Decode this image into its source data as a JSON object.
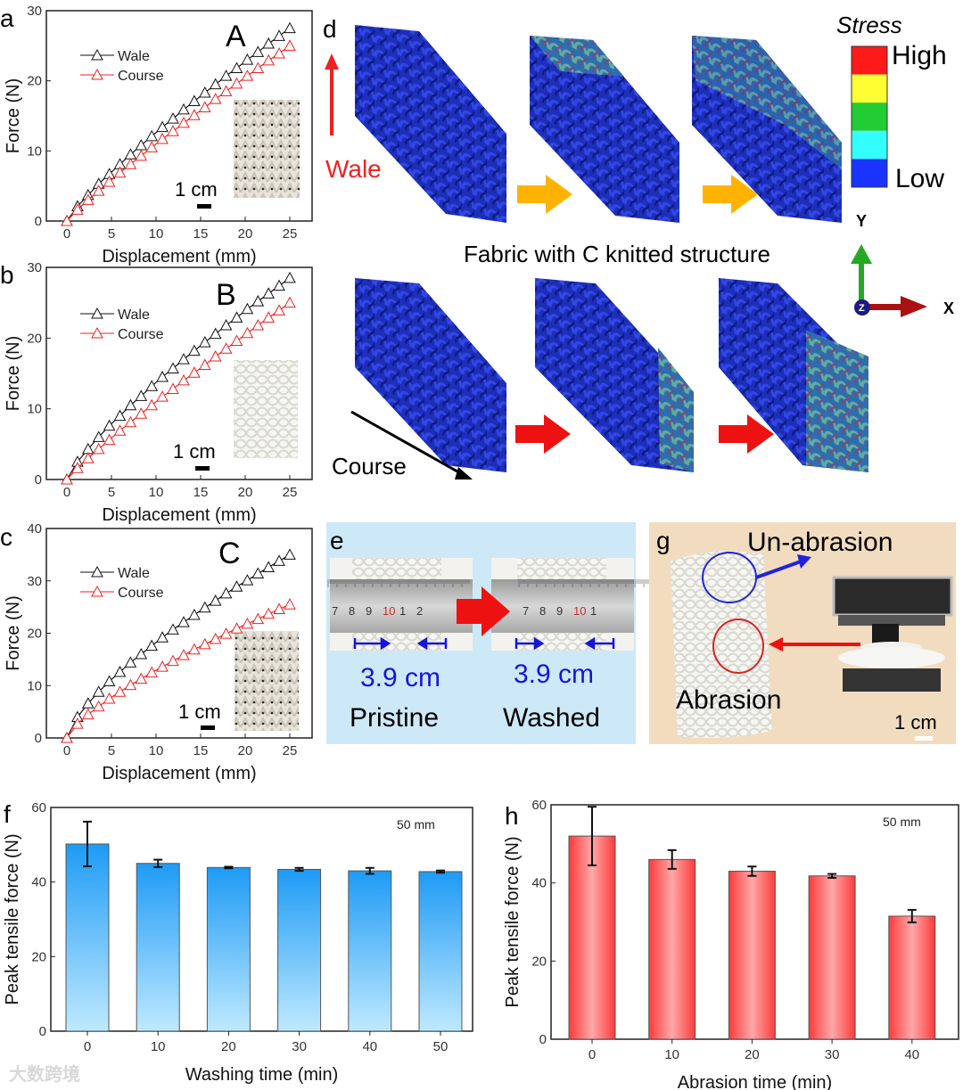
{
  "panels": {
    "a": {
      "letter": "a",
      "tag": "A",
      "scale": "1 cm"
    },
    "b": {
      "letter": "b",
      "tag": "B",
      "scale": "1 cm"
    },
    "c": {
      "letter": "c",
      "tag": "C",
      "scale": "1 cm"
    },
    "d": {
      "letter": "d",
      "wale": "Wale",
      "course": "Course",
      "title": "Fabric with C knitted structure",
      "stress": {
        "title": "Stress",
        "high": "High",
        "low": "Low",
        "colors": [
          "#ff1a1a",
          "#ffff33",
          "#22cc33",
          "#33ffff",
          "#1a33ff"
        ]
      },
      "axes": {
        "y": "Y",
        "x": "X",
        "z": "Z"
      }
    },
    "e": {
      "letter": "e",
      "value_left": "3.9 cm",
      "value_right": "3.9 cm",
      "left_label": "Pristine",
      "right_label": "Washed",
      "ruler_left": [
        "7",
        "8",
        "9",
        "10",
        "1",
        "2"
      ],
      "ruler_right": [
        "7",
        "8",
        "9",
        "10",
        "1"
      ]
    },
    "g": {
      "letter": "g",
      "top_label": "Un-abrasion",
      "bottom_label": "Abrasion",
      "scale": "1 cm"
    },
    "f": {
      "letter": "f"
    },
    "h": {
      "letter": "h"
    }
  },
  "watermark": "大数跨境",
  "chart_data": [
    {
      "id": "a",
      "type": "line",
      "xlabel": "Displacement (mm)",
      "ylabel": "Force (N)",
      "xlim": [
        -2.3,
        27.5
      ],
      "ylim": [
        0,
        30
      ],
      "xticks": [
        0,
        5,
        10,
        15,
        20,
        25
      ],
      "yticks": [
        0,
        10,
        20,
        30
      ],
      "legend": "top-left",
      "x": [
        0,
        1.19,
        2.38,
        3.57,
        4.76,
        5.95,
        7.14,
        8.33,
        9.52,
        10.71,
        11.9,
        13.1,
        14.29,
        15.48,
        16.67,
        17.86,
        19.05,
        20.24,
        21.43,
        22.62,
        23.81,
        25
      ],
      "series": [
        {
          "name": "Wale",
          "color": "#111111",
          "values": [
            0,
            2.1,
            3.7,
            5.3,
            6.7,
            8.1,
            9.5,
            10.8,
            12.1,
            13.4,
            14.6,
            15.9,
            17.1,
            18.3,
            19.5,
            20.7,
            21.8,
            23.0,
            24.1,
            25.3,
            26.4,
            27.5
          ]
        },
        {
          "name": "Course",
          "color": "#ee2222",
          "values": [
            0,
            1.6,
            3.0,
            4.3,
            5.6,
            6.9,
            8.1,
            9.3,
            10.5,
            11.7,
            12.8,
            14.0,
            15.1,
            16.2,
            17.4,
            18.5,
            19.6,
            20.7,
            21.8,
            22.9,
            23.9,
            25.0
          ]
        }
      ]
    },
    {
      "id": "b",
      "type": "line",
      "xlabel": "Displacement (mm)",
      "ylabel": "Force (N)",
      "xlim": [
        -2.3,
        27.5
      ],
      "ylim": [
        0,
        30
      ],
      "xticks": [
        0,
        5,
        10,
        15,
        20,
        25
      ],
      "yticks": [
        0,
        10,
        20,
        30
      ],
      "legend": "top-left",
      "x": [
        0,
        1.19,
        2.38,
        3.57,
        4.76,
        5.95,
        7.14,
        8.33,
        9.52,
        10.71,
        11.9,
        13.1,
        14.29,
        15.48,
        16.67,
        17.86,
        19.05,
        20.24,
        21.43,
        22.62,
        23.81,
        25
      ],
      "series": [
        {
          "name": "Wale",
          "color": "#111111",
          "values": [
            0,
            2.5,
            4.3,
            6.0,
            7.6,
            9.0,
            10.5,
            11.8,
            13.2,
            14.5,
            15.7,
            17.0,
            18.2,
            19.4,
            20.6,
            21.8,
            22.9,
            24.1,
            25.2,
            26.3,
            27.4,
            28.5
          ]
        },
        {
          "name": "Course",
          "color": "#ee2222",
          "values": [
            0,
            1.6,
            3.0,
            4.3,
            5.6,
            6.9,
            8.1,
            9.3,
            10.5,
            11.7,
            12.8,
            14.0,
            15.1,
            16.2,
            17.4,
            18.5,
            19.6,
            20.7,
            21.8,
            22.9,
            23.9,
            25.0
          ]
        }
      ]
    },
    {
      "id": "c",
      "type": "line",
      "xlabel": "Displacement (mm)",
      "ylabel": "Force (N)",
      "xlim": [
        -2.3,
        27.5
      ],
      "ylim": [
        0,
        40
      ],
      "xticks": [
        0,
        5,
        10,
        15,
        20,
        25
      ],
      "yticks": [
        0,
        10,
        20,
        30,
        40
      ],
      "legend": "top-left",
      "x": [
        0,
        1.19,
        2.38,
        3.57,
        4.76,
        5.95,
        7.14,
        8.33,
        9.52,
        10.71,
        11.9,
        13.1,
        14.29,
        15.48,
        16.67,
        17.86,
        19.05,
        20.24,
        21.43,
        22.62,
        23.81,
        25
      ],
      "series": [
        {
          "name": "Wale",
          "color": "#111111",
          "values": [
            0,
            4.0,
            6.6,
            8.8,
            10.8,
            12.6,
            14.4,
            16.0,
            17.6,
            19.2,
            20.7,
            22.1,
            23.5,
            24.9,
            26.2,
            27.6,
            28.9,
            30.1,
            31.4,
            32.6,
            33.8,
            35.0
          ]
        },
        {
          "name": "Course",
          "color": "#ee2222",
          "values": [
            0,
            2.7,
            4.5,
            6.0,
            7.5,
            8.8,
            10.1,
            11.3,
            12.5,
            13.6,
            14.7,
            15.8,
            16.9,
            17.9,
            18.9,
            19.9,
            20.9,
            21.8,
            22.7,
            23.7,
            24.6,
            25.5
          ]
        }
      ]
    },
    {
      "id": "f",
      "type": "bar",
      "xlabel": "Washing time (min)",
      "ylabel": "Peak tensile force (N)",
      "annotation": "50 mm",
      "ylim": [
        0,
        60
      ],
      "yticks": [
        0,
        20,
        40,
        60
      ],
      "categories": [
        "0",
        "10",
        "20",
        "30",
        "40",
        "50"
      ],
      "values": [
        50.2,
        45.0,
        43.9,
        43.4,
        43.0,
        42.8
      ],
      "errors": [
        6.0,
        1.0,
        0.2,
        0.4,
        0.8,
        0.3
      ],
      "colors": [
        "#1e9bf5",
        "#bfe9ff"
      ]
    },
    {
      "id": "h",
      "type": "bar",
      "xlabel": "Abrasion time (min)",
      "ylabel": "Peak tensile force (N)",
      "annotation": "50 mm",
      "ylim": [
        0,
        60
      ],
      "yticks": [
        0,
        20,
        40,
        60
      ],
      "categories": [
        "0",
        "10",
        "20",
        "30",
        "40"
      ],
      "values": [
        52.0,
        46.0,
        43.0,
        41.8,
        31.5
      ],
      "errors": [
        7.5,
        2.4,
        1.2,
        0.5,
        1.6
      ],
      "colors": [
        "#ff3a3a",
        "#ffa8a8"
      ]
    }
  ]
}
